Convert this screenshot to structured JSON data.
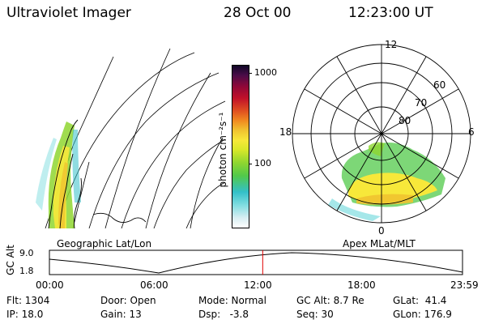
{
  "header": {
    "title": "Ultraviolet Imager",
    "date": "28 Oct 00",
    "time": "12:23:00 UT"
  },
  "colorbar": {
    "unit_label": "photon cm⁻²s⁻¹",
    "ticks": [
      "1000",
      "100"
    ],
    "colors": [
      "#ffffff",
      "#d8eef2",
      "#7fdde0",
      "#33c0c8",
      "#52c94a",
      "#8fd630",
      "#d8e82a",
      "#f7e83a",
      "#f0c330",
      "#f08a20",
      "#e05020",
      "#c0102a",
      "#900838",
      "#4a0c48",
      "#100828"
    ]
  },
  "left_panel": {
    "caption": "Geographic Lat/Lon"
  },
  "right_panel": {
    "caption": "Apex MLat/MLT",
    "mlt_labels": [
      "12",
      "18",
      "6",
      "0"
    ],
    "mlat_labels": [
      "60",
      "70",
      "80"
    ]
  },
  "timeline": {
    "ylabel": "GC Alt",
    "y_ticks": [
      "9.0",
      "1.8"
    ],
    "x_ticks": [
      "00:00",
      "06:00",
      "12:00",
      "18:00",
      "23:59"
    ],
    "marker_time": "12:23",
    "marker_color": "#e00000"
  },
  "info": {
    "flt": "Flt: 1304",
    "ip": "IP: 18.0",
    "door": "Door: Open",
    "gain": "Gain: 13",
    "mode": "Mode: Normal",
    "dsp": "Dsp:   -3.8",
    "gcalt": "GC Alt: 8.7 Re",
    "seq": "Seq: 30",
    "glat": "GLat:  41.4",
    "glon": "GLon: 176.9"
  }
}
